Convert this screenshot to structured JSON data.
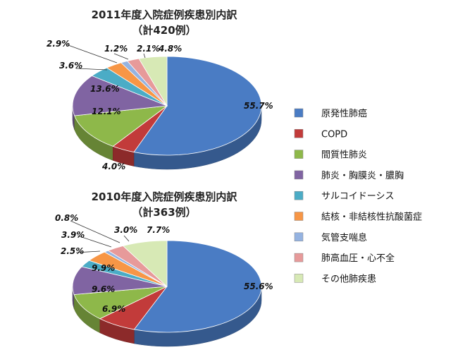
{
  "colors": {
    "原発性肺癌": "#4a7cc4",
    "COPD": "#c23b3a",
    "間質性肺炎": "#8eb84a",
    "肺炎・胸膜炎・膿胸": "#8064a2",
    "サルコイドーシス": "#4bacc6",
    "結核・非結核性抗酸菌症": "#f79646",
    "気管支喘息": "#95b3e1",
    "肺高血圧・心不全": "#e79a9a",
    "その他肺疾患": "#d7e9b5"
  },
  "legend": [
    "原発性肺癌",
    "COPD",
    "間質性肺炎",
    "肺炎・胸膜炎・膿胸",
    "サルコイドーシス",
    "結核・非結核性抗酸菌症",
    "気管支喘息",
    "肺高血圧・心不全",
    "その他肺疾患"
  ],
  "chart_data": [
    {
      "type": "pie",
      "title": "2011年度入院症例疾患別内訳",
      "subtitle": "（計420例）",
      "categories": [
        "原発性肺癌",
        "COPD",
        "間質性肺炎",
        "肺炎・胸膜炎・膿胸",
        "サルコイドーシス",
        "結核・非結核性抗酸菌症",
        "気管支喘息",
        "肺高血圧・心不全",
        "その他肺疾患"
      ],
      "values": [
        55.7,
        4.0,
        12.1,
        13.6,
        3.6,
        2.9,
        1.2,
        2.1,
        4.8
      ],
      "labels": [
        "55.7%",
        "4.0%",
        "12.1%",
        "13.6%",
        "3.6%",
        "2.9%",
        "1.2%",
        "2.1%",
        "4.8%"
      ]
    },
    {
      "type": "pie",
      "title": "2010年度入院症例疾患別内訳",
      "subtitle": "（計363例）",
      "categories": [
        "原発性肺癌",
        "COPD",
        "間質性肺炎",
        "肺炎・胸膜炎・膿胸",
        "サルコイドーシス",
        "結核・非結核性抗酸菌症",
        "気管支喘息",
        "肺高血圧・心不全",
        "その他肺疾患"
      ],
      "values": [
        55.6,
        6.9,
        9.6,
        9.9,
        2.5,
        3.9,
        0.8,
        3.0,
        7.7
      ],
      "labels": [
        "55.6%",
        "6.9%",
        "9.6%",
        "9.9%",
        "2.5%",
        "3.9%",
        "0.8%",
        "3.0%",
        "7.7%"
      ]
    }
  ]
}
